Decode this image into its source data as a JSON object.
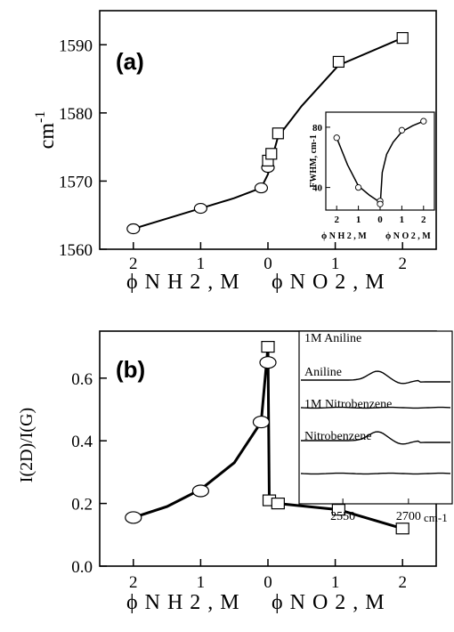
{
  "chart_data": [
    {
      "type": "line",
      "panel_label": "(a)",
      "ylabel": "cm",
      "ylabel_sup": "-1",
      "xlabel_left": "ϕ N H 2 , M",
      "xlabel_right": "ϕ N O 2 , M",
      "xlim": [
        -2.5,
        2.5
      ],
      "ylim": [
        1560,
        1595
      ],
      "x_ticks": [
        -2,
        -1,
        0,
        1,
        2
      ],
      "x_tick_labels": [
        "2",
        "1",
        "0",
        "1",
        "2"
      ],
      "y_ticks": [
        1560,
        1570,
        1580,
        1590
      ],
      "y_tick_labels": [
        "1560",
        "1570",
        "1580",
        "1590"
      ],
      "series": [
        {
          "marker": "circle",
          "x": [
            -2,
            -1,
            -0.1,
            0
          ],
          "y": [
            1563,
            1566,
            1569,
            1572
          ]
        },
        {
          "marker": "square",
          "x": [
            0,
            0.05,
            0.15,
            1.05,
            2
          ],
          "y": [
            1573,
            1574,
            1577,
            1587.5,
            1591
          ]
        }
      ],
      "curve": {
        "x": [
          -2,
          -1,
          -0.5,
          -0.1,
          0,
          0.05,
          0.15,
          0.5,
          1.05,
          2
        ],
        "y": [
          1563,
          1566,
          1567.5,
          1569,
          1571,
          1573,
          1576.5,
          1581,
          1587,
          1591
        ]
      },
      "inset": {
        "type": "line",
        "ylabel": "FWHM, cm-1",
        "xlabel_left": "ϕ N H 2 , M",
        "xlabel_right": "ϕ N O 2 , M",
        "xlim": [
          -2.5,
          2.5
        ],
        "ylim": [
          25,
          90
        ],
        "x_ticks": [
          -2,
          -1,
          0,
          1,
          2
        ],
        "x_tick_labels": [
          "2",
          "1",
          "0",
          "1",
          "2"
        ],
        "y_ticks": [
          40,
          80
        ],
        "y_tick_labels": [
          "40",
          "80"
        ],
        "points": {
          "x": [
            -2,
            -1,
            0,
            0,
            1,
            2
          ],
          "y": [
            73,
            40,
            31,
            29,
            78,
            84
          ]
        },
        "curve_left": {
          "x": [
            -2,
            -1.5,
            -1,
            -0.5,
            -0.1
          ],
          "y": [
            73,
            55,
            41,
            35,
            31
          ]
        },
        "curve_right": {
          "x": [
            0.02,
            0.1,
            0.3,
            0.6,
            1,
            1.5,
            2
          ],
          "y": [
            32,
            50,
            62,
            70,
            77,
            81,
            84
          ]
        }
      }
    },
    {
      "type": "line",
      "panel_label": "(b)",
      "ylabel": "I(2D)/I(G)",
      "xlabel_left": "ϕ N H 2 , M",
      "xlabel_right": "ϕ N O 2 , M",
      "xlim": [
        -2.5,
        2.5
      ],
      "ylim": [
        0,
        0.75
      ],
      "x_ticks": [
        -2,
        -1,
        0,
        1,
        2
      ],
      "x_tick_labels": [
        "2",
        "1",
        "0",
        "1",
        "2"
      ],
      "y_ticks": [
        0,
        0.2,
        0.4,
        0.6
      ],
      "y_tick_labels": [
        "0.0",
        "0.2",
        "0.4",
        "0.6"
      ],
      "series": [
        {
          "marker": "ellipse",
          "x": [
            -2,
            -1,
            -0.1,
            0
          ],
          "y": [
            0.155,
            0.24,
            0.46,
            0.65
          ]
        },
        {
          "marker": "square",
          "x": [
            0,
            0.02,
            0.15,
            1.05,
            2
          ],
          "y": [
            0.7,
            0.21,
            0.2,
            0.18,
            0.12
          ]
        }
      ],
      "curve": {
        "x": [
          -2,
          -1.5,
          -1,
          -0.5,
          -0.1,
          0,
          0.02,
          0.15,
          1.05,
          2
        ],
        "y": [
          0.155,
          0.19,
          0.245,
          0.33,
          0.46,
          0.7,
          0.21,
          0.2,
          0.18,
          0.12
        ]
      },
      "inset": {
        "type": "line",
        "xlabel": "cm-1",
        "x_ticks": [
          2550,
          2700
        ],
        "x_tick_labels": [
          "2550",
          "2700"
        ],
        "xlim": [
          2450,
          2800
        ],
        "spectra": [
          {
            "name": "1M Aniline",
            "shape": "bump"
          },
          {
            "name": "Aniline",
            "shape": "flat"
          },
          {
            "name": "1M Nitrobenzene",
            "shape": "bump"
          },
          {
            "name": "Nitrobenzene",
            "shape": "flat"
          }
        ]
      }
    }
  ]
}
